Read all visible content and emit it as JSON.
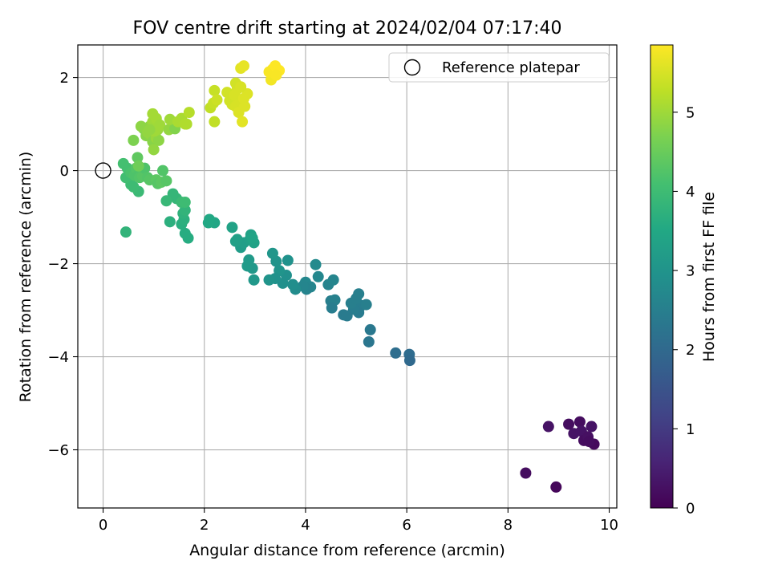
{
  "chart_data": {
    "type": "scatter",
    "title": "FOV centre drift starting at 2024/02/04 07:17:40",
    "xlabel": "Angular distance from reference (arcmin)",
    "ylabel": "Rotation from reference (arcmin)",
    "xlim": [
      -0.5,
      10.15
    ],
    "ylim": [
      -7.25,
      2.7
    ],
    "xticks": [
      0,
      2,
      4,
      6,
      8,
      10
    ],
    "yticks": [
      2,
      0,
      -2,
      -4,
      -6
    ],
    "xtick_labels": [
      "0",
      "2",
      "4",
      "6",
      "8",
      "10"
    ],
    "ytick_labels": [
      "2",
      "0",
      "−2",
      "−4",
      "−6"
    ],
    "grid": true,
    "legend": {
      "placement": "top-right",
      "entries": [
        "Reference platepar"
      ]
    },
    "colorbar": {
      "label": "Hours from first FF file",
      "colormap": "viridis",
      "range": [
        0,
        5.85
      ],
      "ticks": [
        0,
        1,
        2,
        3,
        4,
        5
      ],
      "tick_labels": [
        "0",
        "1",
        "2",
        "3",
        "4",
        "5"
      ]
    },
    "reference_point": {
      "x": 0,
      "y": 0
    },
    "points": [
      {
        "x": 8.35,
        "y": -6.5,
        "h": 0.2
      },
      {
        "x": 8.95,
        "y": -6.8,
        "h": 0.1
      },
      {
        "x": 8.8,
        "y": -5.5,
        "h": 0.3
      },
      {
        "x": 9.2,
        "y": -5.45,
        "h": 0.2
      },
      {
        "x": 9.3,
        "y": -5.65,
        "h": 0.3
      },
      {
        "x": 9.42,
        "y": -5.4,
        "h": 0.2
      },
      {
        "x": 9.45,
        "y": -5.6,
        "h": 0.3
      },
      {
        "x": 9.5,
        "y": -5.8,
        "h": 0.2
      },
      {
        "x": 9.58,
        "y": -5.72,
        "h": 0.25
      },
      {
        "x": 9.65,
        "y": -5.5,
        "h": 0.3
      },
      {
        "x": 9.7,
        "y": -5.88,
        "h": 0.15
      },
      {
        "x": 9.6,
        "y": -5.82,
        "h": 0.2
      },
      {
        "x": 5.78,
        "y": -3.92,
        "h": 2.1
      },
      {
        "x": 6.05,
        "y": -3.95,
        "h": 2.05
      },
      {
        "x": 6.06,
        "y": -4.08,
        "h": 2.0
      },
      {
        "x": 5.25,
        "y": -3.68,
        "h": 2.3
      },
      {
        "x": 5.28,
        "y": -3.42,
        "h": 2.35
      },
      {
        "x": 5.05,
        "y": -2.65,
        "h": 2.5
      },
      {
        "x": 5.1,
        "y": -2.9,
        "h": 2.45
      },
      {
        "x": 5.05,
        "y": -3.05,
        "h": 2.4
      },
      {
        "x": 5.2,
        "y": -2.88,
        "h": 2.5
      },
      {
        "x": 4.95,
        "y": -2.98,
        "h": 2.45
      },
      {
        "x": 4.9,
        "y": -2.85,
        "h": 2.5
      },
      {
        "x": 5.0,
        "y": -2.75,
        "h": 2.5
      },
      {
        "x": 4.75,
        "y": -3.1,
        "h": 2.4
      },
      {
        "x": 4.82,
        "y": -3.12,
        "h": 2.4
      },
      {
        "x": 4.5,
        "y": -2.8,
        "h": 2.5
      },
      {
        "x": 4.58,
        "y": -2.78,
        "h": 2.55
      },
      {
        "x": 4.52,
        "y": -2.95,
        "h": 2.45
      },
      {
        "x": 4.45,
        "y": -2.45,
        "h": 2.6
      },
      {
        "x": 4.55,
        "y": -2.35,
        "h": 2.65
      },
      {
        "x": 4.25,
        "y": -2.28,
        "h": 2.7
      },
      {
        "x": 4.2,
        "y": -2.02,
        "h": 2.75
      },
      {
        "x": 4.0,
        "y": -2.4,
        "h": 2.7
      },
      {
        "x": 4.1,
        "y": -2.5,
        "h": 2.65
      },
      {
        "x": 4.02,
        "y": -2.55,
        "h": 2.6
      },
      {
        "x": 3.95,
        "y": -2.48,
        "h": 2.65
      },
      {
        "x": 3.8,
        "y": -2.55,
        "h": 2.8
      },
      {
        "x": 3.75,
        "y": -2.45,
        "h": 2.85
      },
      {
        "x": 3.62,
        "y": -2.25,
        "h": 2.9
      },
      {
        "x": 3.55,
        "y": -2.42,
        "h": 2.9
      },
      {
        "x": 3.65,
        "y": -1.93,
        "h": 2.95
      },
      {
        "x": 3.48,
        "y": -2.15,
        "h": 3.0
      },
      {
        "x": 3.42,
        "y": -1.95,
        "h": 3.0
      },
      {
        "x": 3.35,
        "y": -1.78,
        "h": 3.05
      },
      {
        "x": 3.4,
        "y": -2.32,
        "h": 2.95
      },
      {
        "x": 3.28,
        "y": -2.35,
        "h": 3.0
      },
      {
        "x": 2.98,
        "y": -2.35,
        "h": 3.1
      },
      {
        "x": 2.95,
        "y": -2.1,
        "h": 3.1
      },
      {
        "x": 2.85,
        "y": -2.05,
        "h": 3.15
      },
      {
        "x": 2.88,
        "y": -1.92,
        "h": 3.15
      },
      {
        "x": 2.72,
        "y": -1.65,
        "h": 3.2
      },
      {
        "x": 2.78,
        "y": -1.55,
        "h": 3.25
      },
      {
        "x": 2.65,
        "y": -1.48,
        "h": 3.3
      },
      {
        "x": 2.62,
        "y": -1.52,
        "h": 3.3
      },
      {
        "x": 2.9,
        "y": -1.48,
        "h": 3.3
      },
      {
        "x": 2.92,
        "y": -1.38,
        "h": 3.35
      },
      {
        "x": 2.98,
        "y": -1.55,
        "h": 3.35
      },
      {
        "x": 2.95,
        "y": -1.45,
        "h": 3.4
      },
      {
        "x": 2.55,
        "y": -1.22,
        "h": 3.35
      },
      {
        "x": 2.2,
        "y": -1.12,
        "h": 3.45
      },
      {
        "x": 2.08,
        "y": -1.12,
        "h": 3.5
      },
      {
        "x": 2.1,
        "y": -1.05,
        "h": 3.5
      },
      {
        "x": 1.68,
        "y": -1.45,
        "h": 3.6
      },
      {
        "x": 1.62,
        "y": -1.35,
        "h": 3.6
      },
      {
        "x": 1.55,
        "y": -1.15,
        "h": 3.65
      },
      {
        "x": 1.6,
        "y": -1.05,
        "h": 3.7
      },
      {
        "x": 1.58,
        "y": -0.92,
        "h": 3.75
      },
      {
        "x": 1.62,
        "y": -0.85,
        "h": 3.8
      },
      {
        "x": 1.32,
        "y": -1.1,
        "h": 3.7
      },
      {
        "x": 1.45,
        "y": -0.6,
        "h": 3.85
      },
      {
        "x": 1.38,
        "y": -0.5,
        "h": 3.85
      },
      {
        "x": 1.55,
        "y": -0.68,
        "h": 3.95
      },
      {
        "x": 1.62,
        "y": -0.68,
        "h": 4.0
      },
      {
        "x": 1.25,
        "y": -0.65,
        "h": 3.9
      },
      {
        "x": 0.45,
        "y": -1.32,
        "h": 3.8
      },
      {
        "x": 0.7,
        "y": -0.45,
        "h": 3.95
      },
      {
        "x": 0.6,
        "y": -0.35,
        "h": 4.0
      },
      {
        "x": 0.55,
        "y": -0.3,
        "h": 4.0
      },
      {
        "x": 0.45,
        "y": -0.15,
        "h": 4.05
      },
      {
        "x": 0.4,
        "y": 0.15,
        "h": 4.1
      },
      {
        "x": 0.48,
        "y": 0.05,
        "h": 4.1
      },
      {
        "x": 0.55,
        "y": -0.05,
        "h": 4.15
      },
      {
        "x": 0.62,
        "y": -0.1,
        "h": 4.2
      },
      {
        "x": 0.65,
        "y": 0.05,
        "h": 4.25
      },
      {
        "x": 0.7,
        "y": -0.1,
        "h": 4.2
      },
      {
        "x": 0.72,
        "y": -0.15,
        "h": 4.25
      },
      {
        "x": 0.78,
        "y": -0.12,
        "h": 4.3
      },
      {
        "x": 0.82,
        "y": 0.05,
        "h": 4.2
      },
      {
        "x": 0.88,
        "y": -0.15,
        "h": 4.25
      },
      {
        "x": 0.92,
        "y": -0.2,
        "h": 4.3
      },
      {
        "x": 1.05,
        "y": -0.2,
        "h": 4.35
      },
      {
        "x": 1.08,
        "y": -0.28,
        "h": 4.3
      },
      {
        "x": 1.15,
        "y": -0.25,
        "h": 4.35
      },
      {
        "x": 1.25,
        "y": -0.22,
        "h": 4.3
      },
      {
        "x": 1.18,
        "y": 0.0,
        "h": 4.25
      },
      {
        "x": 0.68,
        "y": 0.28,
        "h": 4.4
      },
      {
        "x": 0.7,
        "y": 0.1,
        "h": 4.55
      },
      {
        "x": 0.6,
        "y": 0.65,
        "h": 4.7
      },
      {
        "x": 0.8,
        "y": 0.9,
        "h": 4.75
      },
      {
        "x": 0.85,
        "y": 0.75,
        "h": 4.8
      },
      {
        "x": 0.75,
        "y": 0.95,
        "h": 4.85
      },
      {
        "x": 0.88,
        "y": 0.82,
        "h": 4.9
      },
      {
        "x": 0.92,
        "y": 0.95,
        "h": 4.85
      },
      {
        "x": 0.95,
        "y": 0.75,
        "h": 4.9
      },
      {
        "x": 0.98,
        "y": 0.62,
        "h": 4.8
      },
      {
        "x": 1.0,
        "y": 0.45,
        "h": 4.9
      },
      {
        "x": 1.05,
        "y": 0.7,
        "h": 4.95
      },
      {
        "x": 1.1,
        "y": 0.65,
        "h": 4.85
      },
      {
        "x": 1.08,
        "y": 0.88,
        "h": 4.95
      },
      {
        "x": 1.02,
        "y": 0.85,
        "h": 5.0
      },
      {
        "x": 0.98,
        "y": 1.05,
        "h": 5.0
      },
      {
        "x": 1.05,
        "y": 1.12,
        "h": 5.05
      },
      {
        "x": 0.98,
        "y": 1.22,
        "h": 5.05
      },
      {
        "x": 0.92,
        "y": 0.88,
        "h": 4.9
      },
      {
        "x": 1.12,
        "y": 0.98,
        "h": 5.0
      },
      {
        "x": 1.3,
        "y": 0.88,
        "h": 4.9
      },
      {
        "x": 1.42,
        "y": 0.9,
        "h": 4.75
      },
      {
        "x": 1.32,
        "y": 1.1,
        "h": 5.0
      },
      {
        "x": 1.48,
        "y": 1.05,
        "h": 5.1
      },
      {
        "x": 1.55,
        "y": 1.12,
        "h": 5.1
      },
      {
        "x": 1.62,
        "y": 1.0,
        "h": 5.15
      },
      {
        "x": 1.65,
        "y": 1.0,
        "h": 5.15
      },
      {
        "x": 1.7,
        "y": 1.25,
        "h": 5.2
      },
      {
        "x": 2.12,
        "y": 1.35,
        "h": 5.3
      },
      {
        "x": 2.2,
        "y": 1.05,
        "h": 5.3
      },
      {
        "x": 2.18,
        "y": 1.45,
        "h": 5.35
      },
      {
        "x": 2.2,
        "y": 1.72,
        "h": 5.35
      },
      {
        "x": 2.25,
        "y": 1.52,
        "h": 5.4
      },
      {
        "x": 2.45,
        "y": 1.68,
        "h": 5.45
      },
      {
        "x": 2.5,
        "y": 1.5,
        "h": 5.45
      },
      {
        "x": 2.55,
        "y": 1.42,
        "h": 5.45
      },
      {
        "x": 2.62,
        "y": 1.38,
        "h": 5.5
      },
      {
        "x": 2.6,
        "y": 1.62,
        "h": 5.5
      },
      {
        "x": 2.65,
        "y": 1.75,
        "h": 5.5
      },
      {
        "x": 2.68,
        "y": 1.25,
        "h": 5.55
      },
      {
        "x": 2.62,
        "y": 1.88,
        "h": 5.45
      },
      {
        "x": 2.72,
        "y": 1.48,
        "h": 5.5
      },
      {
        "x": 2.78,
        "y": 1.55,
        "h": 5.55
      },
      {
        "x": 2.8,
        "y": 1.38,
        "h": 5.55
      },
      {
        "x": 2.85,
        "y": 1.65,
        "h": 5.55
      },
      {
        "x": 2.75,
        "y": 1.05,
        "h": 5.6
      },
      {
        "x": 2.72,
        "y": 1.8,
        "h": 5.5
      },
      {
        "x": 2.72,
        "y": 2.2,
        "h": 5.6
      },
      {
        "x": 2.78,
        "y": 2.25,
        "h": 5.65
      },
      {
        "x": 3.32,
        "y": 1.95,
        "h": 5.75
      },
      {
        "x": 3.28,
        "y": 2.12,
        "h": 5.8
      },
      {
        "x": 3.35,
        "y": 2.18,
        "h": 5.8
      },
      {
        "x": 3.4,
        "y": 2.25,
        "h": 5.85
      },
      {
        "x": 3.48,
        "y": 2.15,
        "h": 5.85
      },
      {
        "x": 3.42,
        "y": 2.05,
        "h": 5.8
      }
    ]
  }
}
